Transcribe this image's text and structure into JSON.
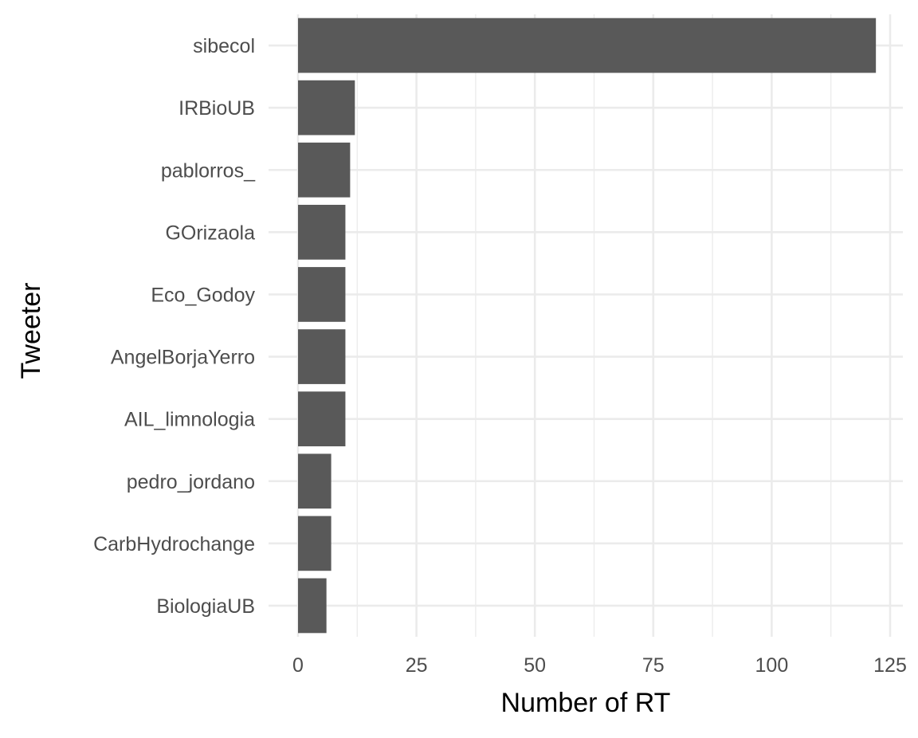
{
  "chart_data": {
    "type": "bar",
    "orientation": "horizontal",
    "categories": [
      "sibecol",
      "IRBioUB",
      "pablorros_",
      "GOrizaola",
      "Eco_Godoy",
      "AngelBorjaYerro",
      "AIL_limnologia",
      "pedro_jordano",
      "CarbHydrochange",
      "BiologiaUB"
    ],
    "values": [
      122,
      12,
      11,
      10,
      10,
      10,
      10,
      7,
      7,
      6
    ],
    "xlabel": "Number of RT",
    "ylabel": "Tweeter",
    "xlim": [
      0,
      128
    ],
    "xticks": [
      0,
      25,
      50,
      75,
      100,
      125
    ],
    "grid": true,
    "bar_color": "#595959",
    "grid_color": "#ebebeb"
  }
}
